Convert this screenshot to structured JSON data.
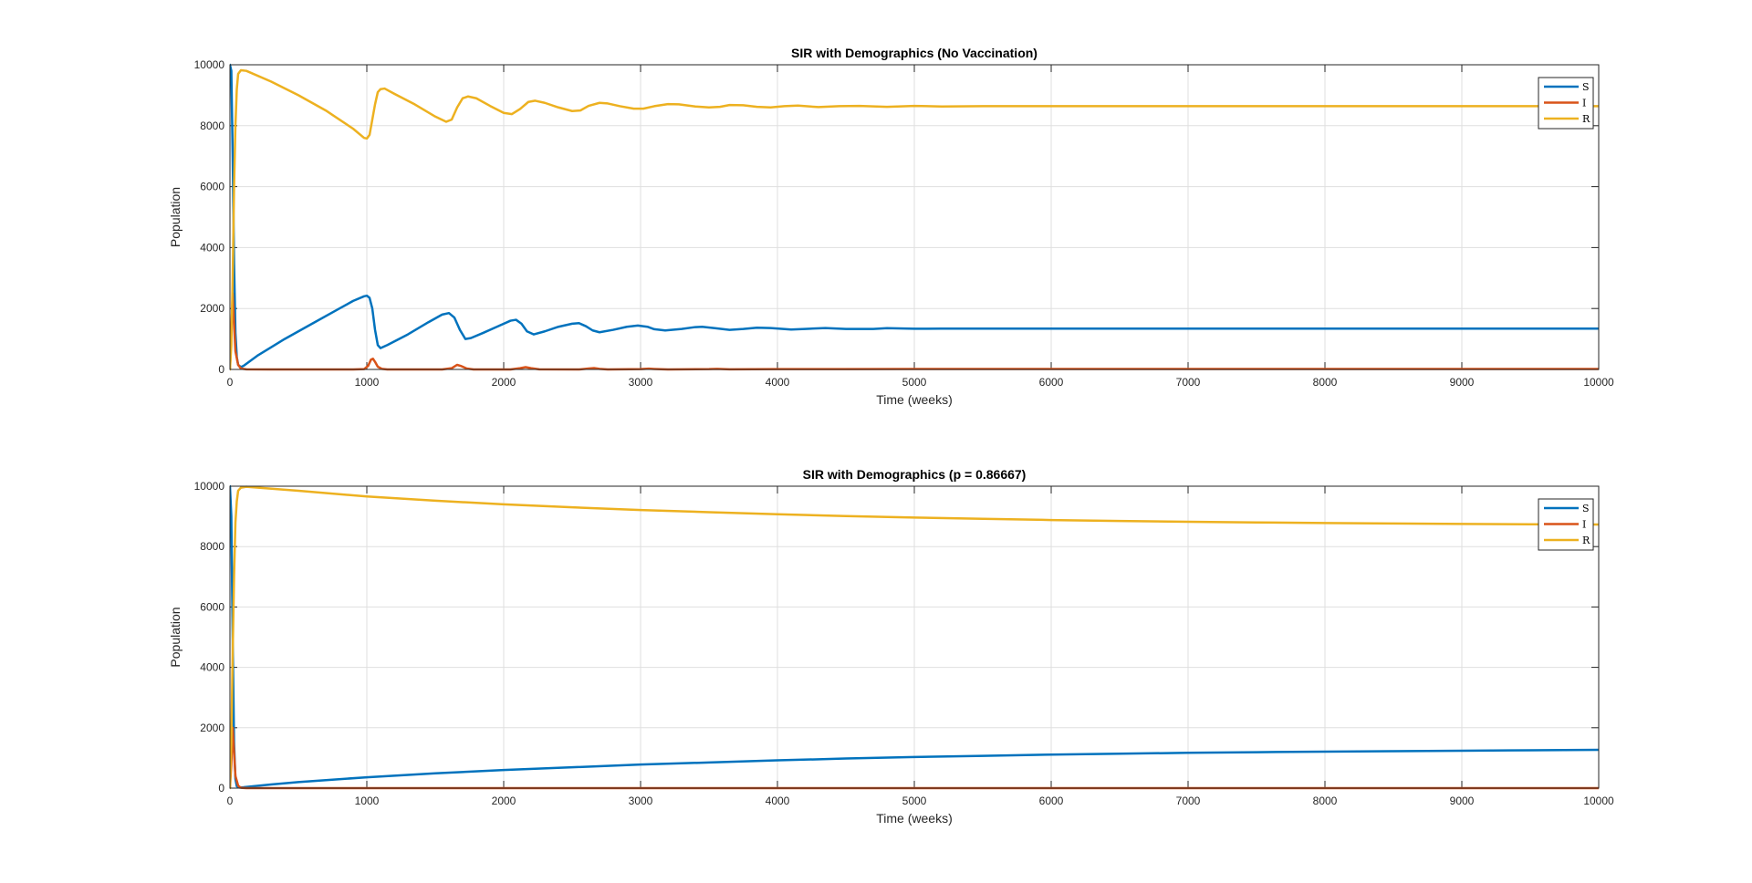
{
  "colors": {
    "S": "#0072BD",
    "I": "#D95319",
    "R": "#EDB120"
  },
  "chart_data": [
    {
      "type": "line",
      "title": "SIR with Demographics (No Vaccination)",
      "xlabel": "Time (weeks)",
      "ylabel": "Population",
      "xlim": [
        0,
        10000
      ],
      "ylim": [
        0,
        10000
      ],
      "xticks": [
        "0",
        "1000",
        "2000",
        "3000",
        "4000",
        "5000",
        "6000",
        "7000",
        "8000",
        "9000",
        "10000"
      ],
      "yticks": [
        "0",
        "2000",
        "4000",
        "6000",
        "8000",
        "10000"
      ],
      "grid": true,
      "legend": "top-right",
      "series": [
        {
          "name": "S",
          "color": "#0072BD",
          "points": [
            [
              0,
              10000
            ],
            [
              10,
              9800
            ],
            [
              20,
              7000
            ],
            [
              30,
              3500
            ],
            [
              40,
              1200
            ],
            [
              50,
              400
            ],
            [
              60,
              150
            ],
            [
              80,
              80
            ],
            [
              100,
              120
            ],
            [
              200,
              450
            ],
            [
              400,
              1000
            ],
            [
              600,
              1500
            ],
            [
              800,
              2000
            ],
            [
              900,
              2250
            ],
            [
              980,
              2400
            ],
            [
              1000,
              2420
            ],
            [
              1020,
              2350
            ],
            [
              1040,
              2000
            ],
            [
              1060,
              1300
            ],
            [
              1080,
              800
            ],
            [
              1100,
              700
            ],
            [
              1150,
              800
            ],
            [
              1300,
              1150
            ],
            [
              1450,
              1550
            ],
            [
              1550,
              1800
            ],
            [
              1600,
              1850
            ],
            [
              1640,
              1700
            ],
            [
              1680,
              1300
            ],
            [
              1720,
              1000
            ],
            [
              1760,
              1030
            ],
            [
              1850,
              1200
            ],
            [
              1950,
              1400
            ],
            [
              2050,
              1600
            ],
            [
              2090,
              1630
            ],
            [
              2130,
              1500
            ],
            [
              2170,
              1250
            ],
            [
              2220,
              1150
            ],
            [
              2300,
              1250
            ],
            [
              2400,
              1400
            ],
            [
              2500,
              1500
            ],
            [
              2550,
              1520
            ],
            [
              2600,
              1420
            ],
            [
              2650,
              1280
            ],
            [
              2700,
              1220
            ],
            [
              2800,
              1300
            ],
            [
              2900,
              1400
            ],
            [
              2980,
              1440
            ],
            [
              3050,
              1400
            ],
            [
              3100,
              1320
            ],
            [
              3180,
              1280
            ],
            [
              3300,
              1330
            ],
            [
              3400,
              1390
            ],
            [
              3450,
              1400
            ],
            [
              3550,
              1350
            ],
            [
              3650,
              1300
            ],
            [
              3750,
              1330
            ],
            [
              3850,
              1370
            ],
            [
              3950,
              1360
            ],
            [
              4100,
              1310
            ],
            [
              4200,
              1330
            ],
            [
              4350,
              1360
            ],
            [
              4500,
              1330
            ],
            [
              4700,
              1330
            ],
            [
              4800,
              1355
            ],
            [
              5000,
              1335
            ],
            [
              5200,
              1340
            ],
            [
              5500,
              1340
            ],
            [
              6000,
              1340
            ],
            [
              7000,
              1340
            ],
            [
              8000,
              1340
            ],
            [
              9000,
              1340
            ],
            [
              10000,
              1340
            ]
          ]
        },
        {
          "name": "I",
          "color": "#D95319",
          "points": [
            [
              0,
              5
            ],
            [
              10,
              1200
            ],
            [
              20,
              2500
            ],
            [
              30,
              1500
            ],
            [
              40,
              600
            ],
            [
              60,
              150
            ],
            [
              80,
              30
            ],
            [
              120,
              5
            ],
            [
              300,
              0
            ],
            [
              900,
              0
            ],
            [
              980,
              10
            ],
            [
              1010,
              120
            ],
            [
              1030,
              320
            ],
            [
              1045,
              350
            ],
            [
              1060,
              250
            ],
            [
              1080,
              90
            ],
            [
              1110,
              20
            ],
            [
              1150,
              0
            ],
            [
              1550,
              0
            ],
            [
              1620,
              40
            ],
            [
              1660,
              150
            ],
            [
              1690,
              110
            ],
            [
              1730,
              30
            ],
            [
              1780,
              0
            ],
            [
              2050,
              0
            ],
            [
              2120,
              40
            ],
            [
              2160,
              75
            ],
            [
              2200,
              40
            ],
            [
              2260,
              5
            ],
            [
              2550,
              0
            ],
            [
              2620,
              30
            ],
            [
              2660,
              45
            ],
            [
              2700,
              20
            ],
            [
              2760,
              0
            ],
            [
              3000,
              10
            ],
            [
              3060,
              25
            ],
            [
              3100,
              15
            ],
            [
              3200,
              0
            ],
            [
              3500,
              10
            ],
            [
              3560,
              18
            ],
            [
              3650,
              5
            ],
            [
              4000,
              10
            ],
            [
              4500,
              12
            ],
            [
              5000,
              15
            ],
            [
              6000,
              15
            ],
            [
              7000,
              15
            ],
            [
              8000,
              15
            ],
            [
              9000,
              15
            ],
            [
              10000,
              15
            ]
          ]
        },
        {
          "name": "R",
          "color": "#EDB120",
          "points": [
            [
              0,
              0
            ],
            [
              10,
              800
            ],
            [
              20,
              3000
            ],
            [
              30,
              6000
            ],
            [
              40,
              8000
            ],
            [
              50,
              9200
            ],
            [
              60,
              9700
            ],
            [
              80,
              9820
            ],
            [
              120,
              9800
            ],
            [
              300,
              9450
            ],
            [
              500,
              9000
            ],
            [
              700,
              8500
            ],
            [
              900,
              7900
            ],
            [
              980,
              7600
            ],
            [
              1000,
              7580
            ],
            [
              1020,
              7700
            ],
            [
              1040,
              8200
            ],
            [
              1060,
              8700
            ],
            [
              1080,
              9100
            ],
            [
              1100,
              9200
            ],
            [
              1130,
              9220
            ],
            [
              1200,
              9050
            ],
            [
              1350,
              8700
            ],
            [
              1500,
              8300
            ],
            [
              1580,
              8130
            ],
            [
              1620,
              8200
            ],
            [
              1660,
              8600
            ],
            [
              1700,
              8900
            ],
            [
              1740,
              8960
            ],
            [
              1800,
              8900
            ],
            [
              1900,
              8650
            ],
            [
              2000,
              8420
            ],
            [
              2060,
              8380
            ],
            [
              2120,
              8550
            ],
            [
              2180,
              8780
            ],
            [
              2230,
              8820
            ],
            [
              2300,
              8750
            ],
            [
              2400,
              8600
            ],
            [
              2500,
              8480
            ],
            [
              2560,
              8500
            ],
            [
              2620,
              8650
            ],
            [
              2700,
              8750
            ],
            [
              2760,
              8730
            ],
            [
              2850,
              8640
            ],
            [
              2950,
              8560
            ],
            [
              3020,
              8560
            ],
            [
              3100,
              8640
            ],
            [
              3200,
              8710
            ],
            [
              3280,
              8700
            ],
            [
              3400,
              8630
            ],
            [
              3500,
              8600
            ],
            [
              3580,
              8620
            ],
            [
              3650,
              8680
            ],
            [
              3750,
              8670
            ],
            [
              3850,
              8620
            ],
            [
              3950,
              8600
            ],
            [
              4050,
              8640
            ],
            [
              4150,
              8660
            ],
            [
              4300,
              8610
            ],
            [
              4450,
              8640
            ],
            [
              4600,
              8650
            ],
            [
              4800,
              8620
            ],
            [
              5000,
              8650
            ],
            [
              5200,
              8630
            ],
            [
              5500,
              8640
            ],
            [
              6000,
              8640
            ],
            [
              7000,
              8640
            ],
            [
              8000,
              8640
            ],
            [
              9000,
              8640
            ],
            [
              10000,
              8640
            ]
          ]
        }
      ]
    },
    {
      "type": "line",
      "title": "SIR with Demographics (p = 0.86667)",
      "xlabel": "Time (weeks)",
      "ylabel": "Population",
      "xlim": [
        0,
        10000
      ],
      "ylim": [
        0,
        10000
      ],
      "xticks": [
        "0",
        "1000",
        "2000",
        "3000",
        "4000",
        "5000",
        "6000",
        "7000",
        "8000",
        "9000",
        "10000"
      ],
      "yticks": [
        "0",
        "2000",
        "4000",
        "6000",
        "8000",
        "10000"
      ],
      "grid": true,
      "legend": "top-right",
      "series": [
        {
          "name": "S",
          "color": "#0072BD",
          "points": [
            [
              0,
              10000
            ],
            [
              10,
              9000
            ],
            [
              20,
              5000
            ],
            [
              30,
              1500
            ],
            [
              40,
              300
            ],
            [
              50,
              60
            ],
            [
              70,
              20
            ],
            [
              100,
              30
            ],
            [
              300,
              120
            ],
            [
              500,
              200
            ],
            [
              1000,
              360
            ],
            [
              1500,
              490
            ],
            [
              2000,
              600
            ],
            [
              2500,
              690
            ],
            [
              3000,
              780
            ],
            [
              3500,
              850
            ],
            [
              4000,
              920
            ],
            [
              4500,
              980
            ],
            [
              5000,
              1030
            ],
            [
              5500,
              1070
            ],
            [
              6000,
              1110
            ],
            [
              6500,
              1140
            ],
            [
              7000,
              1170
            ],
            [
              7500,
              1190
            ],
            [
              8000,
              1210
            ],
            [
              8500,
              1225
            ],
            [
              9000,
              1240
            ],
            [
              9500,
              1255
            ],
            [
              10000,
              1270
            ]
          ]
        },
        {
          "name": "I",
          "color": "#D95319",
          "points": [
            [
              0,
              5
            ],
            [
              10,
              800
            ],
            [
              20,
              2000
            ],
            [
              30,
              1200
            ],
            [
              40,
              400
            ],
            [
              60,
              80
            ],
            [
              80,
              10
            ],
            [
              120,
              0
            ],
            [
              10000,
              0
            ]
          ]
        },
        {
          "name": "R",
          "color": "#EDB120",
          "points": [
            [
              0,
              0
            ],
            [
              10,
              1500
            ],
            [
              20,
              4500
            ],
            [
              30,
              7000
            ],
            [
              40,
              8800
            ],
            [
              50,
              9500
            ],
            [
              60,
              9850
            ],
            [
              80,
              9950
            ],
            [
              120,
              9980
            ],
            [
              500,
              9850
            ],
            [
              1000,
              9660
            ],
            [
              1500,
              9520
            ],
            [
              2000,
              9400
            ],
            [
              2500,
              9300
            ],
            [
              3000,
              9210
            ],
            [
              3500,
              9140
            ],
            [
              4000,
              9070
            ],
            [
              4500,
              9010
            ],
            [
              5000,
              8960
            ],
            [
              5500,
              8920
            ],
            [
              6000,
              8880
            ],
            [
              6500,
              8850
            ],
            [
              7000,
              8820
            ],
            [
              7500,
              8800
            ],
            [
              8000,
              8780
            ],
            [
              8500,
              8765
            ],
            [
              9000,
              8750
            ],
            [
              9500,
              8740
            ],
            [
              10000,
              8730
            ]
          ]
        }
      ]
    }
  ]
}
